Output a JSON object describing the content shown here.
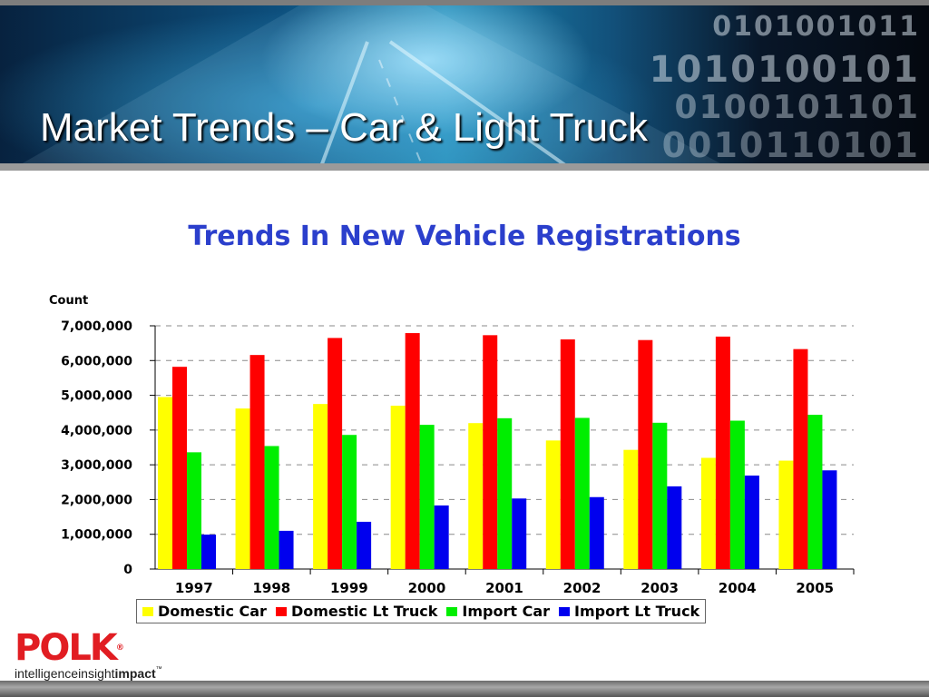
{
  "slide": {
    "title": "Market Trends – Car & Light Truck",
    "banner_binary": [
      "0101001011",
      "1010100101",
      "0100101101",
      "0010110101"
    ]
  },
  "logo": {
    "mark": "POLK",
    "registered": "®",
    "tagline_light": "intelligence",
    "tagline_mid": "insight",
    "tagline_bold": "impact",
    "trademark": "™"
  },
  "colors": {
    "chart_title": "#2b3fcc",
    "domestic_car": "#ffff00",
    "domestic_lt_truck": "#ff0000",
    "import_car": "#00ee00",
    "import_lt_truck": "#0000ee",
    "logo_red": "#e11d22"
  },
  "chart_data": {
    "type": "bar",
    "title": "Trends In New Vehicle Registrations",
    "ylabel": "Count",
    "xlabel": "",
    "ylim": [
      0,
      7000000
    ],
    "ytick_values": [
      0,
      1000000,
      2000000,
      3000000,
      4000000,
      5000000,
      6000000,
      7000000
    ],
    "ytick_labels": [
      "0",
      "1,000,000",
      "2,000,000",
      "3,000,000",
      "4,000,000",
      "5,000,000",
      "6,000,000",
      "7,000,000"
    ],
    "grid": "dashed horizontal",
    "legend_position": "bottom",
    "categories": [
      "1997",
      "1998",
      "1999",
      "2000",
      "2001",
      "2002",
      "2003",
      "2004",
      "2005"
    ],
    "series": [
      {
        "name": "Domestic Car",
        "color": "#ffff00",
        "values": [
          4950000,
          4620000,
          4750000,
          4700000,
          4200000,
          3700000,
          3430000,
          3200000,
          3120000
        ]
      },
      {
        "name": "Domestic Lt Truck",
        "color": "#ff0000",
        "values": [
          5820000,
          6160000,
          6650000,
          6790000,
          6730000,
          6610000,
          6590000,
          6690000,
          6330000
        ]
      },
      {
        "name": "Import Car",
        "color": "#00ee00",
        "values": [
          3360000,
          3540000,
          3860000,
          4150000,
          4340000,
          4350000,
          4210000,
          4270000,
          4440000
        ]
      },
      {
        "name": "Import Lt Truck",
        "color": "#0000ee",
        "values": [
          990000,
          1100000,
          1360000,
          1830000,
          2030000,
          2070000,
          2380000,
          2690000,
          2840000
        ]
      }
    ]
  }
}
